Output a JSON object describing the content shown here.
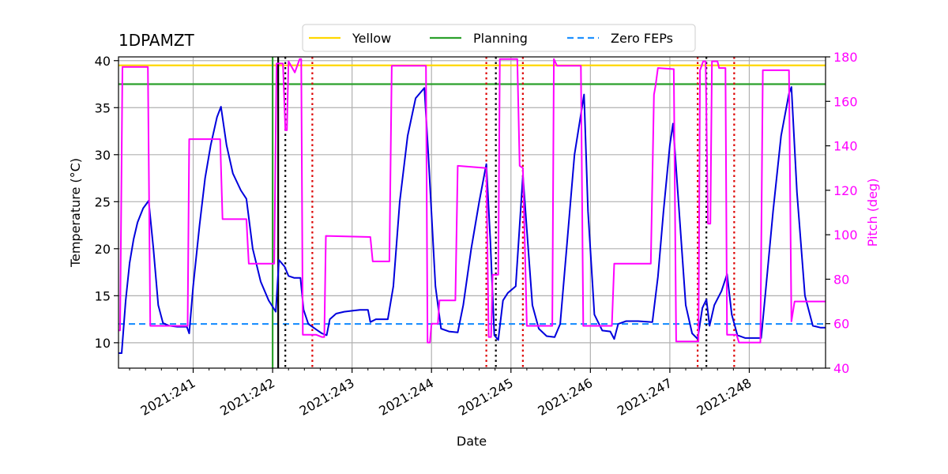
{
  "chart_data": {
    "type": "line",
    "title": "1DPAMZT",
    "xlabel": "Date",
    "ylabel": "Temperature ($^\\circ$C)",
    "ylabel_display": "Temperature (°C)",
    "y2label": "Pitch (deg)",
    "xlim": [
      240.06,
      248.96
    ],
    "ylim": [
      7.3,
      40.4
    ],
    "y2lim": [
      40,
      180
    ],
    "grid": true,
    "legend_position": "top-center",
    "x_ticks": [
      {
        "value": 241,
        "label": "2021:241"
      },
      {
        "value": 242,
        "label": "2021:242"
      },
      {
        "value": 243,
        "label": "2021:243"
      },
      {
        "value": 244,
        "label": "2021:244"
      },
      {
        "value": 245,
        "label": "2021:245"
      },
      {
        "value": 246,
        "label": "2021:246"
      },
      {
        "value": 247,
        "label": "2021:247"
      },
      {
        "value": 248,
        "label": "2021:248"
      }
    ],
    "y_ticks": [
      10,
      15,
      20,
      25,
      30,
      35,
      40
    ],
    "y2_ticks": [
      40,
      60,
      80,
      100,
      120,
      140,
      160,
      180
    ],
    "colors": {
      "temperature": "#0000dd",
      "pitch": "#ff00ff",
      "yellow": "#ffd700",
      "planning": "#2ca02c",
      "zero_feps": "#1e90ff",
      "red_marker": "#dd0000",
      "black_marker": "#000000",
      "grid": "#b0b0b0"
    },
    "hlines": [
      {
        "name": "Yellow",
        "y": 39.5,
        "style": "solid",
        "color": "#ffd700"
      },
      {
        "name": "Planning",
        "y": 37.5,
        "style": "solid",
        "color": "#2ca02c"
      },
      {
        "name": "Zero FEPs",
        "y": 12.0,
        "style": "dashed",
        "color": "#1e90ff"
      }
    ],
    "vlines": [
      {
        "x": 242.0,
        "color": "#2ca02c",
        "style": "solid"
      },
      {
        "x": 242.07,
        "color": "#000000",
        "style": "solid"
      },
      {
        "x": 242.16,
        "color": "#000000",
        "style": "dotted"
      },
      {
        "x": 242.5,
        "color": "#dd0000",
        "style": "dotted"
      },
      {
        "x": 244.69,
        "color": "#dd0000",
        "style": "dotted"
      },
      {
        "x": 244.81,
        "color": "#000000",
        "style": "dotted"
      },
      {
        "x": 245.15,
        "color": "#dd0000",
        "style": "dotted"
      },
      {
        "x": 247.35,
        "color": "#dd0000",
        "style": "dotted"
      },
      {
        "x": 247.46,
        "color": "#000000",
        "style": "dotted"
      },
      {
        "x": 247.81,
        "color": "#dd0000",
        "style": "dotted"
      }
    ],
    "series": [
      {
        "name": "1DPAMZT",
        "axis": "left",
        "points": [
          [
            240.06,
            8.9
          ],
          [
            240.1,
            8.9
          ],
          [
            240.15,
            14.5
          ],
          [
            240.2,
            18.5
          ],
          [
            240.25,
            21
          ],
          [
            240.3,
            22.8
          ],
          [
            240.37,
            24.3
          ],
          [
            240.44,
            25.1
          ],
          [
            240.5,
            20
          ],
          [
            240.56,
            14
          ],
          [
            240.62,
            12.1
          ],
          [
            240.7,
            11.8
          ],
          [
            240.8,
            11.7
          ],
          [
            240.92,
            11.7
          ],
          [
            240.95,
            11.0
          ],
          [
            241.0,
            16
          ],
          [
            241.08,
            22.5
          ],
          [
            241.15,
            27.5
          ],
          [
            241.22,
            31
          ],
          [
            241.3,
            34
          ],
          [
            241.35,
            35.1
          ],
          [
            241.42,
            31
          ],
          [
            241.5,
            28
          ],
          [
            241.6,
            26.2
          ],
          [
            241.67,
            25.3
          ],
          [
            241.75,
            20
          ],
          [
            241.85,
            16.5
          ],
          [
            241.95,
            14.5
          ],
          [
            242.04,
            13.3
          ],
          [
            242.08,
            18.8
          ],
          [
            242.15,
            18.1
          ],
          [
            242.2,
            17.1
          ],
          [
            242.27,
            16.9
          ],
          [
            242.35,
            16.9
          ],
          [
            242.39,
            13.5
          ],
          [
            242.45,
            12
          ],
          [
            242.55,
            11.4
          ],
          [
            242.62,
            11
          ],
          [
            242.68,
            10.8
          ],
          [
            242.72,
            12.5
          ],
          [
            242.8,
            13.1
          ],
          [
            242.9,
            13.3
          ],
          [
            243.0,
            13.4
          ],
          [
            243.1,
            13.5
          ],
          [
            243.2,
            13.5
          ],
          [
            243.23,
            12.2
          ],
          [
            243.3,
            12.5
          ],
          [
            243.45,
            12.5
          ],
          [
            243.52,
            16
          ],
          [
            243.6,
            25
          ],
          [
            243.7,
            32
          ],
          [
            243.8,
            36
          ],
          [
            243.91,
            37.1
          ],
          [
            243.96,
            30
          ],
          [
            244.05,
            16
          ],
          [
            244.12,
            11.5
          ],
          [
            244.22,
            11.2
          ],
          [
            244.33,
            11.1
          ],
          [
            244.4,
            14
          ],
          [
            244.5,
            20
          ],
          [
            244.6,
            25
          ],
          [
            244.69,
            29
          ],
          [
            244.74,
            21
          ],
          [
            244.79,
            10.8
          ],
          [
            244.84,
            10.3
          ],
          [
            244.9,
            14.5
          ],
          [
            244.96,
            15.3
          ],
          [
            245.06,
            16.0
          ],
          [
            245.15,
            27.8
          ],
          [
            245.2,
            22
          ],
          [
            245.27,
            14
          ],
          [
            245.35,
            11.5
          ],
          [
            245.45,
            10.7
          ],
          [
            245.55,
            10.6
          ],
          [
            245.62,
            12
          ],
          [
            245.7,
            20
          ],
          [
            245.8,
            30
          ],
          [
            245.92,
            36.4
          ],
          [
            245.97,
            24
          ],
          [
            246.05,
            13
          ],
          [
            246.15,
            11.3
          ],
          [
            246.25,
            11.2
          ],
          [
            246.3,
            10.4
          ],
          [
            246.35,
            12.0
          ],
          [
            246.45,
            12.3
          ],
          [
            246.6,
            12.3
          ],
          [
            246.78,
            12.2
          ],
          [
            246.85,
            17
          ],
          [
            246.92,
            24
          ],
          [
            247.0,
            31
          ],
          [
            247.04,
            33.3
          ],
          [
            247.1,
            26
          ],
          [
            247.2,
            14
          ],
          [
            247.28,
            11
          ],
          [
            247.35,
            10.4
          ],
          [
            247.41,
            13.7
          ],
          [
            247.46,
            14.6
          ],
          [
            247.5,
            11.8
          ],
          [
            247.56,
            14
          ],
          [
            247.65,
            15.5
          ],
          [
            247.72,
            17.3
          ],
          [
            247.78,
            13
          ],
          [
            247.85,
            10.8
          ],
          [
            247.95,
            10.5
          ],
          [
            248.05,
            10.5
          ],
          [
            248.15,
            10.5
          ],
          [
            248.2,
            15
          ],
          [
            248.3,
            24
          ],
          [
            248.4,
            32
          ],
          [
            248.5,
            36.5
          ],
          [
            248.53,
            37.2
          ],
          [
            248.6,
            26
          ],
          [
            248.7,
            15
          ],
          [
            248.8,
            11.8
          ],
          [
            248.9,
            11.6
          ],
          [
            248.96,
            11.6
          ]
        ]
      },
      {
        "name": "Pitch",
        "axis": "right",
        "points": [
          [
            240.06,
            57
          ],
          [
            240.08,
            57
          ],
          [
            240.11,
            175.5
          ],
          [
            240.43,
            175.5
          ],
          [
            240.46,
            59
          ],
          [
            240.93,
            59
          ],
          [
            240.95,
            143
          ],
          [
            241.34,
            143
          ],
          [
            241.37,
            107
          ],
          [
            241.67,
            107
          ],
          [
            241.7,
            87
          ],
          [
            242.02,
            87
          ],
          [
            242.05,
            177
          ],
          [
            242.13,
            177
          ],
          [
            242.16,
            147
          ],
          [
            242.18,
            147
          ],
          [
            242.2,
            178
          ],
          [
            242.28,
            173
          ],
          [
            242.34,
            179
          ],
          [
            242.36,
            179
          ],
          [
            242.38,
            55
          ],
          [
            242.55,
            55
          ],
          [
            242.62,
            54
          ],
          [
            242.65,
            54
          ],
          [
            242.67,
            99.5
          ],
          [
            243.23,
            99
          ],
          [
            243.26,
            88
          ],
          [
            243.47,
            88
          ],
          [
            243.5,
            176
          ],
          [
            243.93,
            176
          ],
          [
            243.95,
            51.5
          ],
          [
            243.98,
            51.5
          ],
          [
            244.0,
            60
          ],
          [
            244.08,
            60
          ],
          [
            244.1,
            70.5
          ],
          [
            244.3,
            70.5
          ],
          [
            244.33,
            131
          ],
          [
            244.69,
            130
          ],
          [
            244.72,
            54
          ],
          [
            244.75,
            54
          ],
          [
            244.77,
            82
          ],
          [
            244.84,
            82
          ],
          [
            244.86,
            179
          ],
          [
            245.08,
            179
          ],
          [
            245.11,
            131
          ],
          [
            245.15,
            130
          ],
          [
            245.2,
            59
          ],
          [
            245.52,
            59
          ],
          [
            245.54,
            179
          ],
          [
            245.58,
            176
          ],
          [
            245.88,
            176
          ],
          [
            245.91,
            59
          ],
          [
            246.27,
            59
          ],
          [
            246.3,
            87
          ],
          [
            246.76,
            87
          ],
          [
            246.8,
            163
          ],
          [
            246.82,
            167
          ],
          [
            246.85,
            175
          ],
          [
            247.05,
            174.5
          ],
          [
            247.08,
            52
          ],
          [
            247.36,
            52
          ],
          [
            247.38,
            174
          ],
          [
            247.42,
            178
          ],
          [
            247.45,
            178
          ],
          [
            247.48,
            105
          ],
          [
            247.51,
            105
          ],
          [
            247.53,
            178
          ],
          [
            247.6,
            178
          ],
          [
            247.62,
            175
          ],
          [
            247.7,
            175
          ],
          [
            247.72,
            55
          ],
          [
            247.84,
            55
          ],
          [
            247.87,
            51.5
          ],
          [
            248.14,
            51.5
          ],
          [
            248.17,
            174
          ],
          [
            248.5,
            174
          ],
          [
            248.53,
            61
          ],
          [
            248.57,
            70
          ],
          [
            248.96,
            70
          ]
        ]
      }
    ]
  },
  "legend": {
    "items": [
      {
        "label": "Yellow",
        "color": "#ffd700",
        "style": "solid"
      },
      {
        "label": "Planning",
        "color": "#2ca02c",
        "style": "solid"
      },
      {
        "label": "Zero FEPs",
        "color": "#1e90ff",
        "style": "dashed"
      }
    ]
  }
}
